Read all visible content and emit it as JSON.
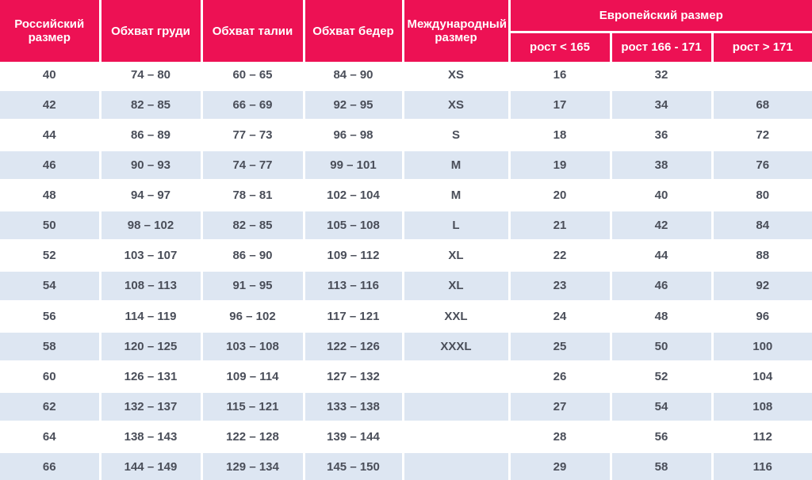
{
  "colors": {
    "header_bg": "#ed1154",
    "header_text": "#ffffff",
    "row_alt_bg": "#dde6f2",
    "row_bg": "#ffffff",
    "body_text": "#4a4e59",
    "divider": "#ffffff"
  },
  "chart_data": {
    "type": "table",
    "header": {
      "main_columns": [
        "Российский размер",
        "Обхват груди",
        "Обхват талии",
        "Обхват бедер",
        "Международный размер"
      ],
      "group_column": "Европейский размер",
      "group_subcolumns": [
        "рост < 165",
        "рост 166 - 171",
        "рост > 171"
      ]
    },
    "rows": [
      [
        "40",
        "74 – 80",
        "60 – 65",
        "84 – 90",
        "XS",
        "16",
        "32",
        ""
      ],
      [
        "42",
        "82 – 85",
        "66 – 69",
        "92 – 95",
        "XS",
        "17",
        "34",
        "68"
      ],
      [
        "44",
        "86 – 89",
        "77 – 73",
        "96 – 98",
        "S",
        "18",
        "36",
        "72"
      ],
      [
        "46",
        "90 – 93",
        "74 – 77",
        "99 – 101",
        "M",
        "19",
        "38",
        "76"
      ],
      [
        "48",
        "94 – 97",
        "78 – 81",
        "102 – 104",
        "M",
        "20",
        "40",
        "80"
      ],
      [
        "50",
        "98 – 102",
        "82 – 85",
        "105 – 108",
        "L",
        "21",
        "42",
        "84"
      ],
      [
        "52",
        "103 – 107",
        "86 – 90",
        "109 – 112",
        "XL",
        "22",
        "44",
        "88"
      ],
      [
        "54",
        "108 – 113",
        "91 – 95",
        "113 – 116",
        "XL",
        "23",
        "46",
        "92"
      ],
      [
        "56",
        "114 – 119",
        "96 – 102",
        "117 – 121",
        "XXL",
        "24",
        "48",
        "96"
      ],
      [
        "58",
        "120 – 125",
        "103 – 108",
        "122 – 126",
        "XXXL",
        "25",
        "50",
        "100"
      ],
      [
        "60",
        "126 – 131",
        "109 – 114",
        "127 – 132",
        "",
        "26",
        "52",
        "104"
      ],
      [
        "62",
        "132 – 137",
        "115 – 121",
        "133 – 138",
        "",
        "27",
        "54",
        "108"
      ],
      [
        "64",
        "138 – 143",
        "122 – 128",
        "139 – 144",
        "",
        "28",
        "56",
        "112"
      ],
      [
        "66",
        "144 – 149",
        "129 – 134",
        "145 – 150",
        "",
        "29",
        "58",
        "116"
      ]
    ]
  }
}
